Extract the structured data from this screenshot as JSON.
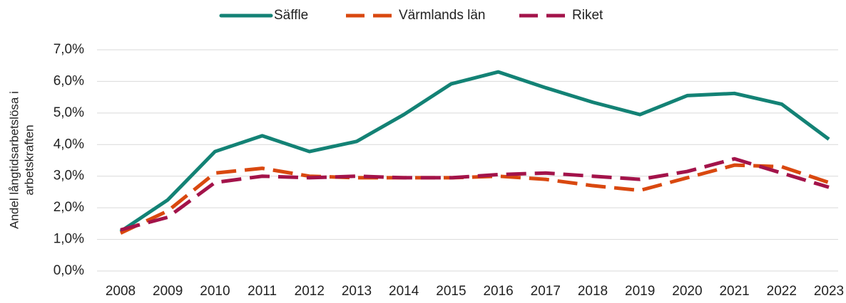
{
  "chart_data": {
    "type": "line",
    "ylabel": [
      "Andel långtidsarbetslösa i",
      "arbetskraften"
    ],
    "categories": [
      "2008",
      "2009",
      "2010",
      "2011",
      "2012",
      "2013",
      "2014",
      "2015",
      "2016",
      "2017",
      "2018",
      "2019",
      "2020",
      "2021",
      "2022",
      "2023"
    ],
    "series": [
      {
        "name": "Säffle",
        "color": "#138275",
        "dashed": false,
        "values": [
          1.25,
          2.25,
          3.78,
          4.28,
          3.78,
          4.1,
          4.95,
          5.92,
          6.3,
          5.8,
          5.34,
          4.95,
          5.55,
          5.62,
          5.28,
          4.17
        ]
      },
      {
        "name": "Värmlands län",
        "color": "#d9480f",
        "dashed": true,
        "values": [
          1.2,
          1.9,
          3.1,
          3.25,
          3.0,
          2.95,
          2.95,
          2.95,
          3.0,
          2.9,
          2.7,
          2.55,
          2.95,
          3.35,
          3.3,
          2.8
        ]
      },
      {
        "name": "Riket",
        "color": "#a3134a",
        "dashed": true,
        "values": [
          1.3,
          1.7,
          2.8,
          3.0,
          2.95,
          3.0,
          2.95,
          2.95,
          3.05,
          3.1,
          3.0,
          2.9,
          3.15,
          3.55,
          3.1,
          2.65
        ]
      }
    ],
    "ylim": [
      0,
      7
    ],
    "yticks": [
      {
        "value": 0,
        "label": "0,0%"
      },
      {
        "value": 1,
        "label": "1,0%"
      },
      {
        "value": 2,
        "label": "2,0%"
      },
      {
        "value": 3,
        "label": "3,0%"
      },
      {
        "value": 4,
        "label": "4,0%"
      },
      {
        "value": 5,
        "label": "5,0%"
      },
      {
        "value": 6,
        "label": "6,0%"
      },
      {
        "value": 7,
        "label": "7,0%"
      }
    ],
    "grid": true,
    "legend": "top"
  }
}
